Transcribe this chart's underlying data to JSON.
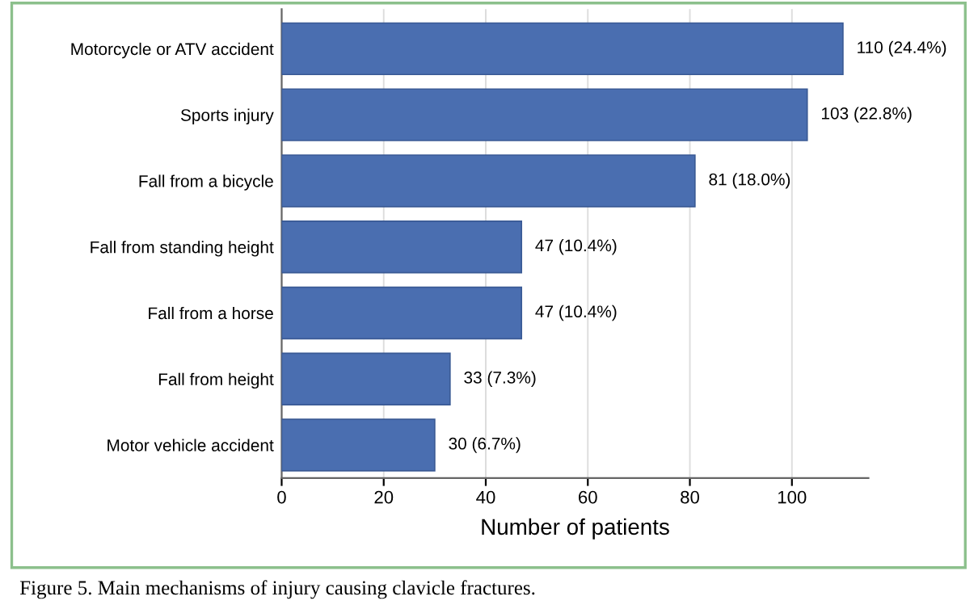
{
  "chart_data": {
    "type": "bar",
    "orientation": "horizontal",
    "xlabel": "Number of patients",
    "categories": [
      "Motorcycle or ATV accident",
      "Sports injury",
      "Fall from a bicycle",
      "Fall from standing height",
      "Fall from a horse",
      "Fall from height",
      "Motor vehicle accident"
    ],
    "values": [
      110,
      103,
      81,
      47,
      47,
      33,
      30
    ],
    "value_labels": [
      "110 (24.4%)",
      "103 (22.8%)",
      "81 (18.0%)",
      "47 (10.4%)",
      "47 (10.4%)",
      "33 (7.3%)",
      "30 (6.7%)"
    ],
    "color": "#4a6eb0",
    "xlim": [
      0,
      115
    ],
    "xticks": [
      0,
      20,
      40,
      60,
      80,
      100
    ],
    "grid": true,
    "annotations": [
      "Figure 5. Main mechanisms of injury causing clavicle fractures."
    ]
  }
}
